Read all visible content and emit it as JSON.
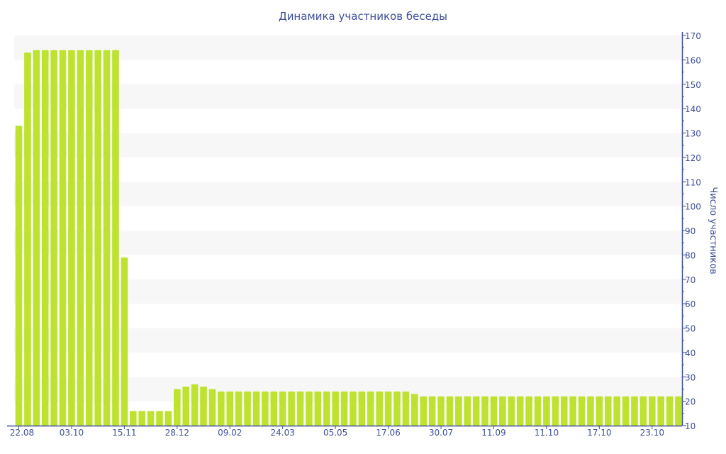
{
  "chart_data": {
    "type": "bar",
    "title": "Динамика участников беседы",
    "ylabel": "Число участников",
    "xlabel": "",
    "ylim": [
      10,
      170
    ],
    "yticks": [
      10,
      20,
      30,
      40,
      50,
      60,
      70,
      80,
      90,
      100,
      110,
      120,
      130,
      140,
      150,
      160,
      170
    ],
    "y_axis_side": "right",
    "grid": "alternating horizontal bands",
    "xtick_labels": [
      {
        "index": 0,
        "label": "22.08"
      },
      {
        "index": 6,
        "label": "03.10"
      },
      {
        "index": 12,
        "label": "15.11"
      },
      {
        "index": 18,
        "label": "28.12"
      },
      {
        "index": 24,
        "label": "09.02"
      },
      {
        "index": 30,
        "label": "24.03"
      },
      {
        "index": 36,
        "label": "05.05"
      },
      {
        "index": 42,
        "label": "17.06"
      },
      {
        "index": 48,
        "label": "30.07"
      },
      {
        "index": 54,
        "label": "11.09"
      },
      {
        "index": 60,
        "label": "11.10"
      },
      {
        "index": 66,
        "label": "17.10"
      },
      {
        "index": 72,
        "label": "23.10"
      }
    ],
    "values": [
      133,
      163,
      164,
      164,
      164,
      164,
      164,
      164,
      164,
      164,
      164,
      164,
      79,
      16,
      16,
      16,
      16,
      16,
      25,
      26,
      27,
      26,
      25,
      24,
      24,
      24,
      24,
      24,
      24,
      24,
      24,
      24,
      24,
      24,
      24,
      24,
      24,
      24,
      24,
      24,
      24,
      24,
      24,
      24,
      24,
      23,
      22,
      22,
      22,
      22,
      22,
      22,
      22,
      22,
      22,
      22,
      22,
      22,
      22,
      22,
      22,
      22,
      22,
      22,
      22,
      22,
      22,
      22,
      22,
      22,
      22,
      22,
      22,
      22,
      22,
      22
    ],
    "colors": {
      "bar": "#bde22f",
      "axis": "#3e4f9b",
      "band": "#f7f7f7"
    }
  }
}
